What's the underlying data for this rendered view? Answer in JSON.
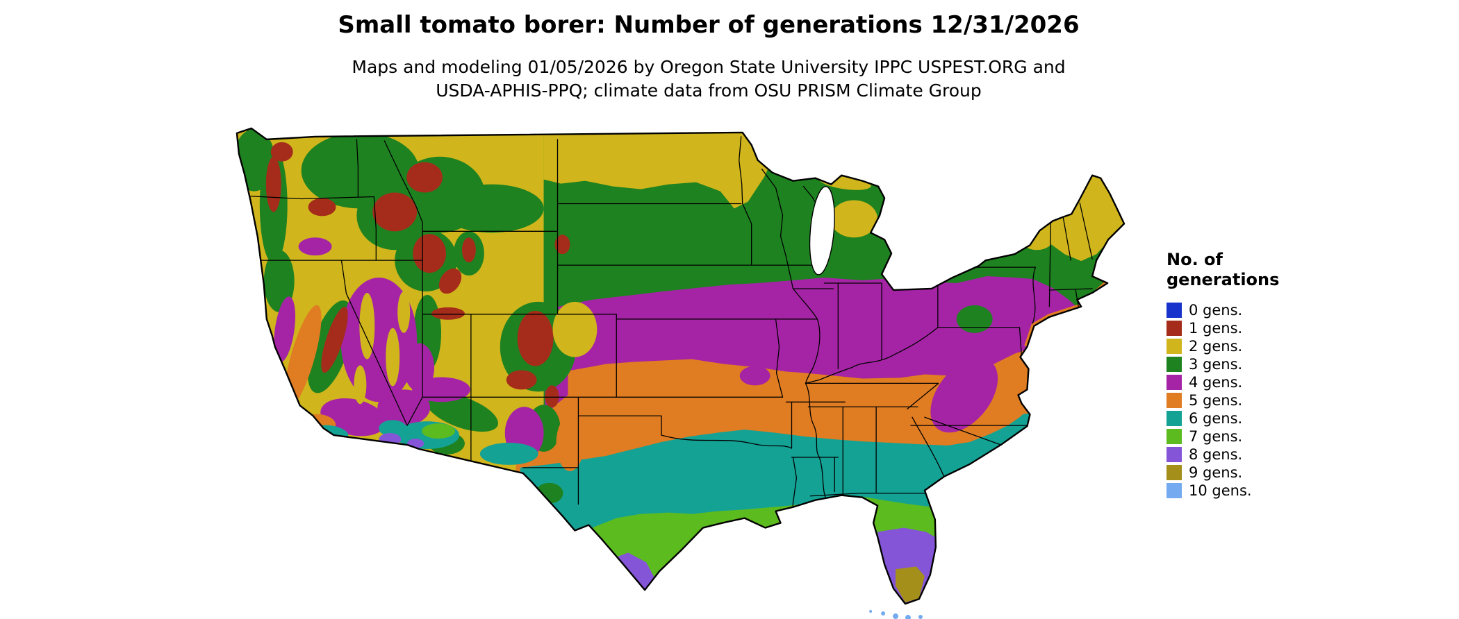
{
  "header": {
    "title": "Small tomato borer: Number of generations 12/31/2026",
    "subtitle_line1": "Maps and modeling 01/05/2026 by Oregon State University IPPC USPEST.ORG and",
    "subtitle_line2": "USDA-APHIS-PPQ; climate data from OSU PRISM Climate Group"
  },
  "legend": {
    "title_line1": "No. of",
    "title_line2": "generations",
    "items": [
      {
        "label": "0 gens.",
        "color": "#1733cc"
      },
      {
        "label": "1 gens.",
        "color": "#a52c1a"
      },
      {
        "label": "2 gens.",
        "color": "#d0b51c"
      },
      {
        "label": "3 gens.",
        "color": "#1e8220"
      },
      {
        "label": "4 gens.",
        "color": "#a524a5"
      },
      {
        "label": "5 gens.",
        "color": "#e07c22"
      },
      {
        "label": "6 gens.",
        "color": "#14a295"
      },
      {
        "label": "7 gens.",
        "color": "#5cbb1f"
      },
      {
        "label": "8 gens.",
        "color": "#8555d8"
      },
      {
        "label": "9 gens.",
        "color": "#a38f1a"
      },
      {
        "label": "10 gens.",
        "color": "#74aaf0"
      }
    ]
  },
  "map": {
    "kind": "choropleth raster map with state boundaries",
    "coverage": "Contiguous United States",
    "band_summary": [
      {
        "zone": "northern border states and New England highlands",
        "generations": 2
      },
      {
        "zone": "northern tier, upper Midwest, Rockies and New England",
        "generations": 3
      },
      {
        "zone": "central plains, Corn Belt, Ohio Valley, Mid-Atlantic, Appalachians, Great Basin",
        "generations": 4
      },
      {
        "zone": "southern plains, Ozarks, Tennessee Valley, piedmont South, California Central Valley",
        "generations": 5
      },
      {
        "zone": "central Texas, Gulf South interior, coastal Carolinas, desert Southwest",
        "generations": 6
      },
      {
        "zone": "south Texas, immediate Gulf Coast, north-central Florida, low deserts",
        "generations": 7
      },
      {
        "zone": "lower Rio Grande Valley and southern Florida",
        "generations": 8
      },
      {
        "zone": "southern tip of Florida",
        "generations": 9
      },
      {
        "zone": "Florida Keys",
        "generations": 10
      }
    ]
  }
}
